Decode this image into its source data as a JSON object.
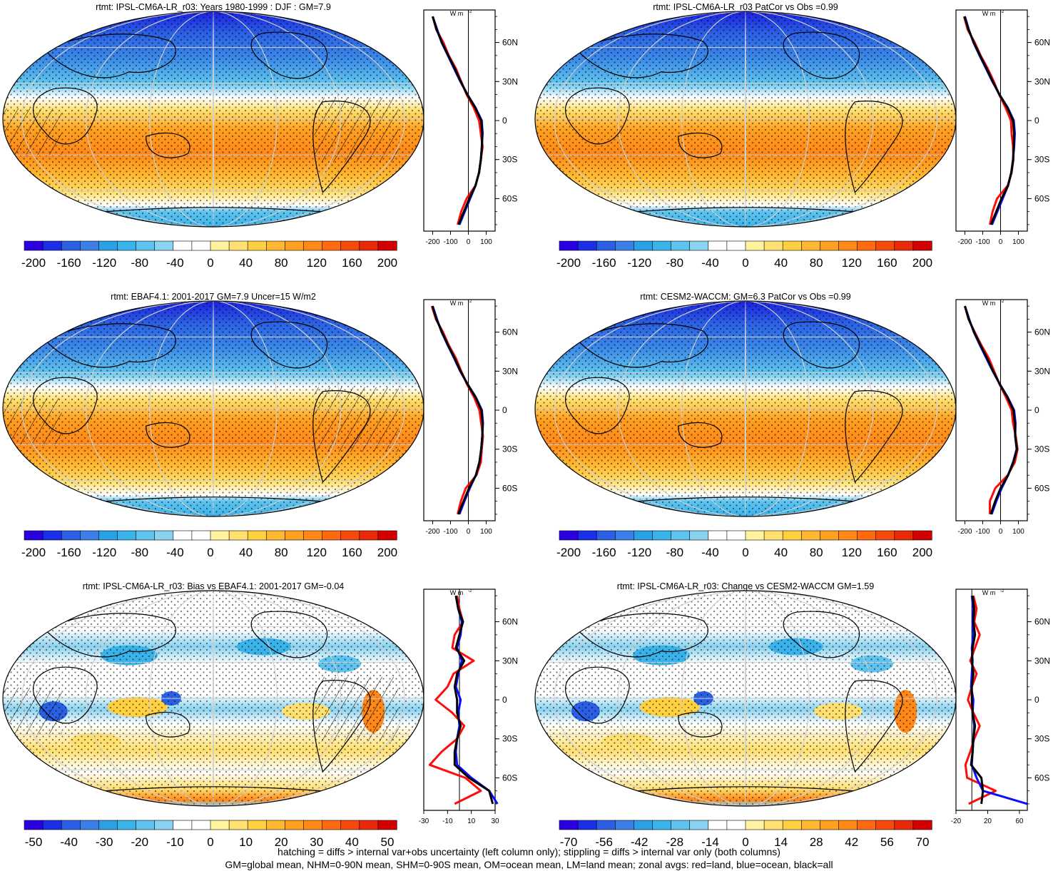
{
  "chart_data": [
    {
      "type": "heatmap",
      "title": "rtmt: IPSL-CM6A-LR_r03: Years 1980-1999 : DJF : GM=7.9",
      "colorbar_ticks": [
        "-200",
        "-160",
        "-120",
        "-80",
        "-40",
        "0",
        "40",
        "80",
        "120",
        "160",
        "200"
      ],
      "map_style": "full",
      "hatching": true,
      "stippling": true,
      "zonal": {
        "units": "W m-2",
        "xlim": [
          -250,
          150
        ],
        "xticks": [
          "-200",
          "-100",
          "0",
          "100"
        ],
        "yticks": [
          "60N",
          "30N",
          "0",
          "30S",
          "60S"
        ],
        "ytick_values": [
          60,
          30,
          0,
          -30,
          -60
        ],
        "lat": [
          80,
          70,
          60,
          50,
          40,
          30,
          20,
          10,
          0,
          -10,
          -20,
          -30,
          -40,
          -50,
          -60,
          -70,
          -80
        ],
        "series": [
          {
            "name": "land",
            "color": "#ff0000",
            "values": [
              -200,
              -180,
              -140,
              -110,
              -70,
              -40,
              -10,
              30,
              60,
              70,
              80,
              70,
              60,
              40,
              -10,
              -40,
              -60
            ]
          },
          {
            "name": "ocean",
            "color": "#0000ff",
            "values": [
              -200,
              -175,
              -150,
              -115,
              -80,
              -45,
              -5,
              40,
              75,
              80,
              75,
              70,
              60,
              40,
              10,
              -20,
              -50
            ]
          },
          {
            "name": "all",
            "color": "#000000",
            "values": [
              -200,
              -178,
              -148,
              -113,
              -76,
              -43,
              -6,
              38,
              72,
              78,
              76,
              70,
              60,
              40,
              5,
              -25,
              -55
            ]
          }
        ]
      }
    },
    {
      "type": "heatmap",
      "title": "rtmt: IPSL-CM6A-LR_r03 PatCor vs Obs =0.99",
      "colorbar_ticks": [
        "-200",
        "-160",
        "-120",
        "-80",
        "-40",
        "0",
        "40",
        "80",
        "120",
        "160",
        "200"
      ],
      "map_style": "full",
      "hatching": false,
      "stippling": true,
      "zonal": {
        "units": "W m-2",
        "xlim": [
          -250,
          150
        ],
        "xticks": [
          "-200",
          "-100",
          "0",
          "100"
        ],
        "yticks": [
          "60N",
          "30N",
          "0",
          "30S",
          "60S"
        ],
        "ytick_values": [
          60,
          30,
          0,
          -30,
          -60
        ],
        "lat": [
          80,
          70,
          60,
          50,
          40,
          30,
          20,
          10,
          0,
          -10,
          -20,
          -30,
          -40,
          -50,
          -60,
          -70,
          -80
        ],
        "series": [
          {
            "name": "land",
            "color": "#ff0000",
            "values": [
              -205,
              -185,
              -145,
              -112,
              -72,
              -38,
              -8,
              28,
              58,
              62,
              70,
              72,
              62,
              40,
              -20,
              -45,
              -60
            ]
          },
          {
            "name": "ocean",
            "color": "#0000ff",
            "values": [
              -200,
              -178,
              -152,
              -118,
              -82,
              -46,
              -6,
              40,
              74,
              80,
              76,
              70,
              60,
              42,
              12,
              -18,
              -48
            ]
          },
          {
            "name": "all",
            "color": "#000000",
            "values": [
              -202,
              -180,
              -150,
              -115,
              -78,
              -44,
              -7,
              38,
              70,
              76,
              74,
              70,
              60,
              42,
              5,
              -24,
              -54
            ]
          }
        ]
      }
    },
    {
      "type": "heatmap",
      "title": "rtmt: EBAF4.1: 2001-2017 GM=7.9 Uncer=15 W/m2",
      "colorbar_ticks": [
        "-200",
        "-160",
        "-120",
        "-80",
        "-40",
        "0",
        "40",
        "80",
        "120",
        "160",
        "200"
      ],
      "map_style": "full",
      "hatching": true,
      "stippling": true,
      "zonal": {
        "units": "W m-2",
        "xlim": [
          -250,
          150
        ],
        "xticks": [
          "-200",
          "-100",
          "0",
          "100"
        ],
        "yticks": [
          "60N",
          "30N",
          "0",
          "30S",
          "60S"
        ],
        "ytick_values": [
          60,
          30,
          0,
          -30,
          -60
        ],
        "lat": [
          80,
          70,
          60,
          50,
          40,
          30,
          20,
          10,
          0,
          -10,
          -20,
          -30,
          -40,
          -50,
          -60,
          -70,
          -80
        ],
        "series": [
          {
            "name": "land",
            "color": "#ff0000",
            "values": [
              -205,
              -182,
              -142,
              -110,
              -70,
              -40,
              -8,
              32,
              62,
              72,
              82,
              75,
              70,
              45,
              -15,
              -42,
              -60
            ]
          },
          {
            "name": "ocean",
            "color": "#0000ff",
            "values": [
              -200,
              -176,
              -150,
              -116,
              -80,
              -46,
              -4,
              42,
              76,
              82,
              78,
              72,
              62,
              42,
              8,
              -22,
              -50
            ]
          },
          {
            "name": "all",
            "color": "#000000",
            "values": [
              -202,
              -179,
              -148,
              -114,
              -77,
              -44,
              -5,
              40,
              73,
              80,
              78,
              72,
              62,
              42,
              3,
              -27,
              -56
            ]
          }
        ]
      }
    },
    {
      "type": "heatmap",
      "title": "rtmt: CESM2-WACCM: GM=6.3 PatCor vs Obs =0.99",
      "colorbar_ticks": [
        "-200",
        "-160",
        "-120",
        "-80",
        "-40",
        "0",
        "40",
        "80",
        "120",
        "160",
        "200"
      ],
      "map_style": "full",
      "hatching": false,
      "stippling": true,
      "zonal": {
        "units": "W m-2",
        "xlim": [
          -250,
          150
        ],
        "xticks": [
          "-200",
          "-100",
          "0",
          "100"
        ],
        "yticks": [
          "60N",
          "30N",
          "0",
          "30S",
          "60S"
        ],
        "ytick_values": [
          60,
          30,
          0,
          -30,
          -60
        ],
        "lat": [
          80,
          70,
          60,
          50,
          40,
          30,
          20,
          10,
          0,
          -10,
          -20,
          -30,
          -40,
          -50,
          -60,
          -70,
          -80
        ],
        "series": [
          {
            "name": "land",
            "color": "#ff0000",
            "values": [
              -200,
              -180,
              -145,
              -108,
              -66,
              -36,
              -6,
              30,
              62,
              70,
              85,
              95,
              80,
              40,
              -30,
              -60,
              -60
            ]
          },
          {
            "name": "ocean",
            "color": "#0000ff",
            "values": [
              -200,
              -176,
              -150,
              -116,
              -80,
              -44,
              -4,
              40,
              76,
              84,
              82,
              90,
              70,
              42,
              6,
              -24,
              -50
            ]
          },
          {
            "name": "all",
            "color": "#000000",
            "values": [
              -200,
              -178,
              -148,
              -113,
              -76,
              -42,
              -5,
              38,
              72,
              80,
              82,
              92,
              72,
              42,
              0,
              -30,
              -55
            ]
          }
        ]
      }
    },
    {
      "type": "heatmap",
      "title": "rtmt: IPSL-CM6A-LR_r03: Bias vs EBAF4.1: 2001-2017 GM=-0.04",
      "colorbar_ticks": [
        "-50",
        "-40",
        "-30",
        "-20",
        "-10",
        "0",
        "10",
        "20",
        "30",
        "40",
        "50"
      ],
      "map_style": "diff",
      "hatching": true,
      "stippling": true,
      "zonal": {
        "units": "W m-2",
        "xlim": [
          -30,
          30
        ],
        "xticks": [
          "-30",
          "-10",
          "10",
          "30"
        ],
        "yticks": [
          "60N",
          "30N",
          "0",
          "30S",
          "60S"
        ],
        "ytick_values": [
          60,
          30,
          0,
          -30,
          -60
        ],
        "lat": [
          80,
          70,
          60,
          50,
          40,
          30,
          20,
          10,
          0,
          -10,
          -20,
          -30,
          -40,
          -50,
          -60,
          -70,
          -80
        ],
        "series": [
          {
            "name": "land",
            "color": "#ff0000",
            "values": [
              -2,
              0,
              3,
              -4,
              -6,
              12,
              -5,
              -10,
              -20,
              -6,
              4,
              -2,
              -15,
              -25,
              5,
              18,
              -4
            ]
          },
          {
            "name": "ocean",
            "color": "#0000ff",
            "values": [
              -3,
              -1,
              2,
              1,
              -2,
              2,
              -1,
              -3,
              1,
              -1,
              0,
              -2,
              -3,
              -2,
              10,
              25,
              32
            ]
          },
          {
            "name": "all",
            "color": "#000000",
            "values": [
              -3,
              -1,
              3,
              0,
              -3,
              4,
              -2,
              -4,
              -2,
              -2,
              1,
              -2,
              -4,
              -4,
              8,
              25,
              28
            ]
          }
        ]
      }
    },
    {
      "type": "heatmap",
      "title": "rtmt: IPSL-CM6A-LR_r03: Change vs CESM2-WACCM GM=1.59",
      "colorbar_ticks": [
        "-70",
        "-56",
        "-42",
        "-28",
        "-14",
        "0",
        "14",
        "28",
        "42",
        "56",
        "70"
      ],
      "map_style": "diff",
      "hatching": false,
      "stippling": true,
      "zonal": {
        "units": "W m-2",
        "xlim": [
          -20,
          70
        ],
        "xticks": [
          "-20",
          "20",
          "60"
        ],
        "yticks": [
          "60N",
          "30N",
          "0",
          "30S",
          "60S"
        ],
        "ytick_values": [
          60,
          30,
          0,
          -30,
          -60
        ],
        "lat": [
          80,
          70,
          60,
          50,
          40,
          30,
          20,
          10,
          0,
          -10,
          -20,
          -30,
          -40,
          -50,
          -60,
          -70,
          -80
        ],
        "series": [
          {
            "name": "land",
            "color": "#ff0000",
            "values": [
              2,
              6,
              3,
              10,
              4,
              -2,
              6,
              0,
              -5,
              2,
              10,
              3,
              -2,
              -8,
              -6,
              30,
              -4
            ]
          },
          {
            "name": "ocean",
            "color": "#0000ff",
            "values": [
              0,
              2,
              1,
              2,
              0,
              1,
              0,
              -1,
              2,
              1,
              3,
              2,
              1,
              0,
              6,
              14,
              70
            ]
          },
          {
            "name": "all",
            "color": "#000000",
            "values": [
              1,
              3,
              2,
              4,
              1,
              0,
              2,
              0,
              0,
              1,
              4,
              2,
              1,
              -1,
              12,
              14,
              12
            ]
          }
        ]
      }
    }
  ],
  "captions": {
    "line1": "hatching = diffs > internal var+obs uncertainty (left column only); stippling = diffs > internal var only (both columns)",
    "line2": "GM=global mean, NHM=0-90N mean, SHM=0-90S mean, OM=ocean mean, LM=land mean; zonal avgs: red=land, blue=ocean, black=all"
  },
  "colors": {
    "colormap": [
      "#2a00e0",
      "#1a2fe8",
      "#2b5fe4",
      "#3c7ee8",
      "#2aa0e6",
      "#3ab3ea",
      "#5ec3ee",
      "#8ad3f0",
      "#ffffff",
      "#ffffff",
      "#fff3a0",
      "#ffe070",
      "#ffd040",
      "#ffb830",
      "#ffa020",
      "#ff8818",
      "#ff6a10",
      "#f54a0c",
      "#e82a08",
      "#d20000"
    ],
    "land_line": "#ff0000",
    "ocean_line": "#0000ff",
    "all_line": "#000000"
  }
}
